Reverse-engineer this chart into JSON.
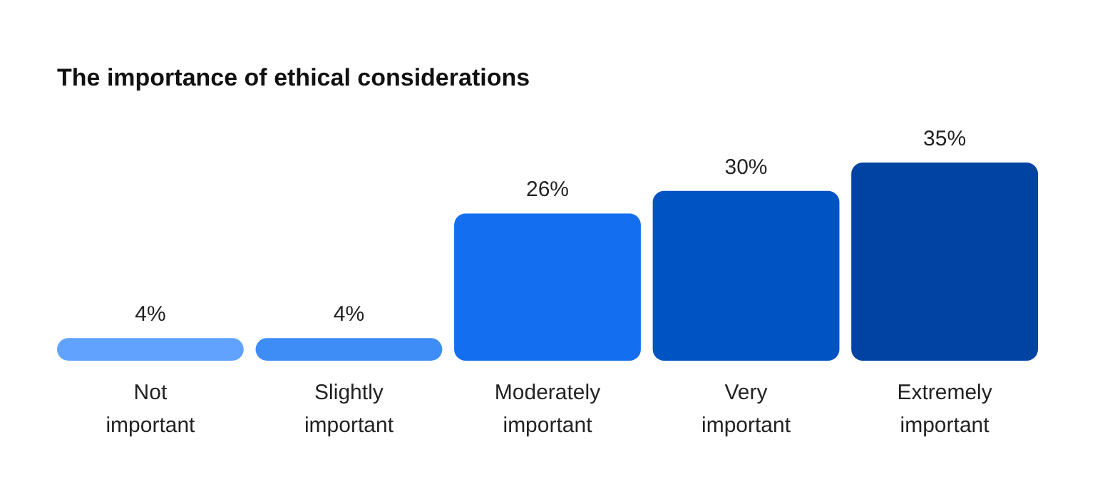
{
  "chart_data": {
    "type": "bar",
    "title": "The importance of ethical considerations",
    "categories": [
      "Not important",
      "Slightly important",
      "Moderately important",
      "Very important",
      "Extremely important"
    ],
    "values": [
      4,
      4,
      26,
      30,
      35
    ],
    "colors": [
      "#62a2ff",
      "#3e8df6",
      "#146ff0",
      "#0053c2",
      "#0043a3"
    ],
    "value_labels": [
      "4%",
      "4%",
      "26%",
      "30%",
      "35%"
    ]
  }
}
